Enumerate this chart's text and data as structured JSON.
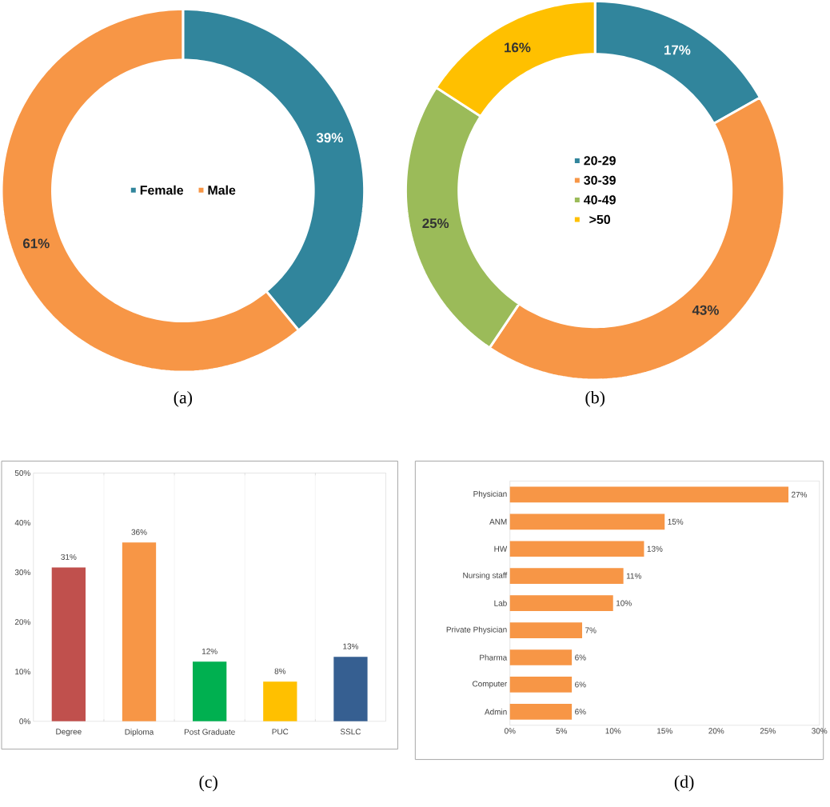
{
  "chart_data": [
    {
      "type": "donut",
      "categories": [
        "Female",
        "Male"
      ],
      "values": [
        39,
        61
      ],
      "colors": [
        "#31859c",
        "#f79646"
      ],
      "value_labels": [
        "39%",
        "61%"
      ],
      "legend": "center",
      "annotations": [
        "(a)"
      ]
    },
    {
      "type": "donut",
      "categories": [
        "20-29",
        "30-39",
        "40-49",
        ">50"
      ],
      "values": [
        17,
        43,
        25,
        16
      ],
      "colors": [
        "#31859c",
        "#f79646",
        "#9bbb59",
        "#ffc000"
      ],
      "value_labels": [
        "17%",
        "43%",
        "25%",
        "16%"
      ],
      "legend": "center",
      "annotations": [
        "(b)"
      ]
    },
    {
      "type": "bar",
      "categories": [
        "Degree",
        "Diploma",
        "Post Graduate",
        "PUC",
        "SSLC"
      ],
      "values": [
        31,
        36,
        12,
        8,
        13
      ],
      "colors": [
        "#c0504d",
        "#f79646",
        "#00b050",
        "#ffc000",
        "#365f91"
      ],
      "value_labels": [
        "31%",
        "36%",
        "12%",
        "8%",
        "13%"
      ],
      "ylim": [
        0,
        50
      ],
      "yticks": [
        {
          "value": 0,
          "label": "0%"
        },
        {
          "value": 10,
          "label": "10%"
        },
        {
          "value": 20,
          "label": "20%"
        },
        {
          "value": 30,
          "label": "30%"
        },
        {
          "value": 40,
          "label": "40%"
        },
        {
          "value": 50,
          "label": "50%"
        }
      ],
      "grid": "x",
      "annotations": [
        "(c)"
      ]
    },
    {
      "type": "bar",
      "orientation": "horizontal",
      "categories": [
        "Physician",
        "ANM",
        "HW",
        "Nursing staff",
        "Lab",
        "Private Physician",
        "Pharma",
        "Computer",
        "Admin"
      ],
      "values": [
        27,
        15,
        13,
        11,
        10,
        7,
        6,
        6,
        6
      ],
      "color": "#f79646",
      "value_labels": [
        "27%",
        "15%",
        "13%",
        "11%",
        "10%",
        "7%",
        "6%",
        "6%",
        "6%"
      ],
      "xlim": [
        0,
        30
      ],
      "xticks": [
        {
          "value": 0,
          "label": "0%"
        },
        {
          "value": 5,
          "label": "5%"
        },
        {
          "value": 10,
          "label": "10%"
        },
        {
          "value": 15,
          "label": "15%"
        },
        {
          "value": 20,
          "label": "20%"
        },
        {
          "value": 25,
          "label": "25%"
        },
        {
          "value": 30,
          "label": "30%"
        }
      ],
      "annotations": [
        "(d)"
      ]
    }
  ]
}
